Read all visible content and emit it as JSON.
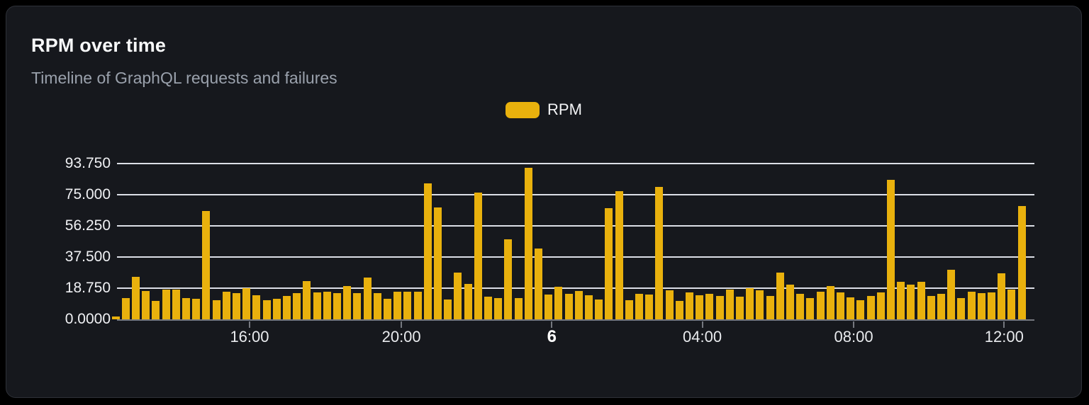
{
  "header": {
    "title": "RPM over time",
    "subtitle": "Timeline of GraphQL requests and failures"
  },
  "legend": {
    "items": [
      {
        "label": "RPM",
        "color": "#e9b10d"
      }
    ]
  },
  "colors": {
    "card_background": "#16181d",
    "card_border": "#2e3138",
    "bar": "#e9b10d",
    "gridline": "#dcdfe7",
    "axis": "#75787f",
    "title_text": "#f8f9fa",
    "subtitle_text": "#9aa1ac",
    "tick_label_text": "#f0f1f4"
  },
  "chart_data": {
    "type": "bar",
    "title": "RPM over time",
    "subtitle": "Timeline of GraphQL requests and failures",
    "xlabel": "",
    "ylabel": "",
    "ylim": [
      0,
      93.75
    ],
    "grid": "horizontal",
    "legend_position": "top-center",
    "bar_color": "#e9b10d",
    "ytick_values": [
      0,
      18.75,
      37.5,
      56.25,
      75,
      93.75
    ],
    "ytick_labels": [
      "0.0000",
      "18.750",
      "37.500",
      "56.250",
      "75.000",
      "93.750"
    ],
    "xtick_labels": [
      "16:00",
      "20:00",
      "6",
      "04:00",
      "08:00",
      "12:00"
    ],
    "xtick_pct": [
      14.45,
      31.0,
      47.4,
      63.8,
      80.3,
      96.7
    ],
    "xtick_bold_index": 2,
    "series": [
      {
        "name": "RPM",
        "values": [
          1.5,
          12.8,
          25.6,
          17,
          11.1,
          17.8,
          17.8,
          12.9,
          12.5,
          65.1,
          11.6,
          16.7,
          15.6,
          18.7,
          14.6,
          11.5,
          12.2,
          13.9,
          15.9,
          23.1,
          16.3,
          16.6,
          15.6,
          20.1,
          15.6,
          25,
          15.8,
          12.4,
          16.5,
          16.6,
          16.8,
          82,
          67.4,
          11.8,
          28.1,
          21.3,
          76.3,
          13.8,
          12.8,
          48.3,
          12.9,
          91.2,
          42.8,
          15.1,
          19.7,
          15.2,
          17,
          14.6,
          12,
          67,
          77,
          11.5,
          15.3,
          14.8,
          79.8,
          17.5,
          11.2,
          16.3,
          14.6,
          15.3,
          14.2,
          18,
          13.8,
          18.8,
          17.3,
          14.2,
          28.1,
          21,
          15.3,
          12.9,
          16.6,
          19.9,
          16.3,
          13.4,
          11.6,
          14.2,
          16.3,
          84,
          22.4,
          20.7,
          22.4,
          13.9,
          15.5,
          30,
          12.8,
          16.5,
          15.8,
          16.3,
          27.9,
          18.1,
          68
        ]
      }
    ]
  }
}
